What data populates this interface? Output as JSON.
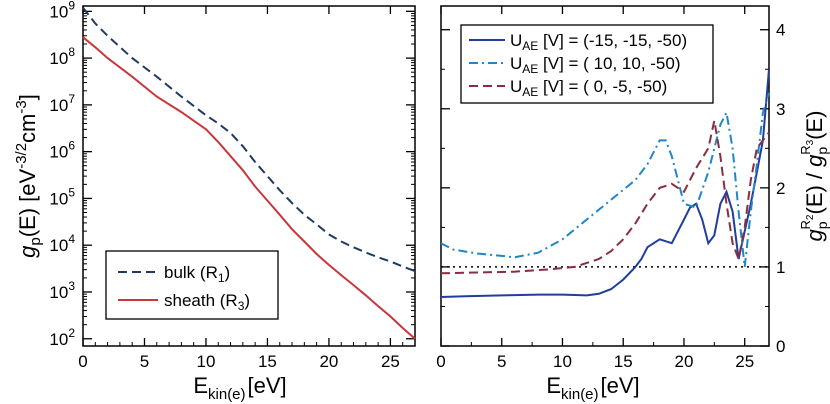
{
  "colors": {
    "bulk": "#1f3a68",
    "sheath": "#c8373b",
    "set1": "#1f3f98",
    "set2": "#1f86c8",
    "set3": "#8b2d3f",
    "reference": "#000000"
  },
  "chart_data": [
    {
      "type": "line",
      "scale_y": "log",
      "xlim": [
        0,
        27
      ],
      "ylim": [
        70,
        1300000000
      ],
      "x_ticks": [
        0,
        5,
        10,
        15,
        20,
        25
      ],
      "y_ticks_exp": [
        2,
        3,
        4,
        5,
        6,
        7,
        8,
        9
      ],
      "ylabel": "g_p(E) [eV^-3/2 cm^-3]",
      "xlabel": "E_kin(e) [eV]",
      "legend_position": "bottom-left",
      "series": [
        {
          "name": "bulk",
          "sub": "1",
          "style": "dashed",
          "x": [
            0,
            1,
            2,
            4,
            6,
            8,
            10,
            11,
            12,
            13,
            14,
            15,
            16,
            17,
            18,
            19,
            20,
            21,
            22,
            23,
            24,
            25,
            26,
            27
          ],
          "y": [
            1200000000,
            550000000,
            300000000,
            100000000,
            40000000,
            15000000,
            6000000,
            4000000,
            2500000,
            1300000,
            600000,
            300000,
            150000,
            80000,
            45000,
            28000,
            17000,
            12000,
            9000,
            7000,
            5500,
            4500,
            3500,
            2800
          ]
        },
        {
          "name": "sheath",
          "sub": "3",
          "style": "solid",
          "x": [
            0,
            1,
            2,
            4,
            6,
            8,
            10,
            11,
            12,
            13,
            14,
            15,
            16,
            17,
            18,
            19,
            20,
            21,
            22,
            23,
            24,
            25,
            26,
            27
          ],
          "y": [
            280000000,
            170000000,
            100000000,
            40000000,
            15000000,
            7000000,
            3000000,
            1600000,
            800000,
            400000,
            180000,
            90000,
            45000,
            22000,
            12000,
            6500,
            3800,
            2300,
            1400,
            850,
            500,
            300,
            170,
            100
          ]
        }
      ]
    },
    {
      "type": "line",
      "scale_y": "linear",
      "xlim": [
        0,
        27
      ],
      "ylim": [
        0,
        4.3
      ],
      "x_ticks": [
        0,
        5,
        10,
        15,
        20,
        25
      ],
      "y_ticks": [
        0,
        1,
        2,
        3,
        4
      ],
      "ylabel": "g_p^R2(E) / g_p^R3(E)",
      "xlabel": "E_kin(e) [eV]",
      "legend_position": "top-left",
      "reference_line": 1,
      "series": [
        {
          "name": "U_AE [V] = (-15, -15, -50)",
          "style": "solid",
          "x": [
            0,
            2,
            5,
            8,
            10,
            12,
            13,
            14,
            15,
            16,
            16.5,
            17,
            18,
            19,
            20,
            20.5,
            21,
            21.5,
            22,
            22.5,
            23,
            23.5,
            24,
            24.5,
            25,
            25.5,
            26,
            26.5,
            27
          ],
          "y": [
            0.62,
            0.63,
            0.64,
            0.65,
            0.65,
            0.64,
            0.66,
            0.72,
            0.84,
            1.0,
            1.1,
            1.25,
            1.35,
            1.3,
            1.6,
            1.75,
            1.8,
            1.6,
            1.3,
            1.4,
            1.8,
            1.95,
            1.7,
            1.1,
            1.45,
            1.8,
            2.2,
            2.6,
            3.5
          ]
        },
        {
          "name": "U_AE [V] = ( 10,  10, -50)",
          "style": "dashdot",
          "x": [
            0,
            1,
            3,
            5,
            6,
            8,
            10,
            12,
            14,
            16,
            17,
            18,
            18.5,
            19,
            19.5,
            20,
            21,
            22,
            23,
            23.5,
            24,
            24.5,
            25,
            25.5,
            26,
            26.5,
            27
          ],
          "y": [
            1.3,
            1.22,
            1.17,
            1.14,
            1.12,
            1.18,
            1.35,
            1.6,
            1.85,
            2.1,
            2.3,
            2.6,
            2.6,
            2.4,
            2.1,
            1.8,
            1.75,
            2.2,
            2.8,
            2.95,
            2.5,
            1.7,
            1.0,
            1.7,
            2.3,
            2.95,
            3.2
          ]
        },
        {
          "name": "U_AE [V] = (  0,   -5, -50)",
          "style": "dashed",
          "x": [
            0,
            3,
            6,
            9,
            11,
            13,
            14,
            15,
            16,
            17,
            18,
            19,
            20,
            21,
            22,
            22.5,
            23,
            23.5,
            24,
            24.5,
            25,
            25.5,
            26,
            26.5,
            27
          ],
          "y": [
            0.92,
            0.93,
            0.94,
            0.97,
            1.0,
            1.1,
            1.2,
            1.35,
            1.55,
            1.8,
            2.0,
            2.05,
            1.95,
            2.25,
            2.5,
            2.85,
            2.4,
            1.8,
            1.3,
            1.1,
            1.5,
            2.1,
            2.5,
            2.6,
            2.7
          ]
        }
      ]
    }
  ],
  "legends": {
    "left": {
      "bulk_label": "bulk (R",
      "bulk_sub": "1",
      "sheath_label": "sheath (R",
      "sheath_sub": "3",
      "close": ")"
    },
    "right": {
      "u": "U",
      "ae": "AE",
      "s1": " [V] = (-15, -15, -50)",
      "s2": " [V] = ( 10,  10, -50)",
      "s3": " [V] = (  0,   -5, -50)"
    }
  },
  "axes_text": {
    "left_ylabel": {
      "g": "g",
      "p": "p",
      "e": "(E) [eV",
      "exp": "-3/2",
      "cm": "cm",
      "cmexp": "-3",
      "close": "]"
    },
    "xlabel": {
      "e": "E",
      "sub": "kin(e)",
      "unit": "[eV]"
    },
    "right_ylabel": {
      "g": "g",
      "p": "p",
      "r2": "R",
      "r2s": "2",
      "mid": "(E) / ",
      "g2": "g",
      "p2": "p",
      "r3": "R",
      "r3s": "3",
      "end": "(E)"
    },
    "tick_base": "10"
  }
}
